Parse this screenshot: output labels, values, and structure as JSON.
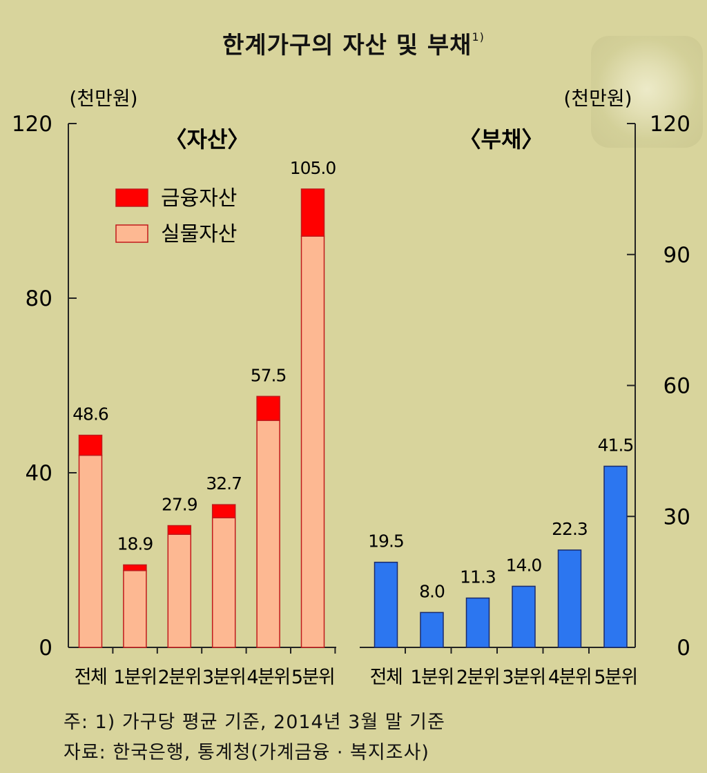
{
  "title": "한계가구의 자산 및 부채",
  "title_note": "1)",
  "footnotes": [
    "주: 1) 가구당 평균 기준, 2014년 3월 말 기준",
    "자료: 한국은행, 통계청(가계금융 · 복지조사)"
  ],
  "chart_data": [
    {
      "type": "bar",
      "stacked": true,
      "title": "〈자산〉",
      "unit_label": "(천만원)",
      "axis_side": "left",
      "ylim": [
        0,
        120
      ],
      "yticks": [
        0,
        40,
        80,
        120
      ],
      "categories": [
        "전체",
        "1분위",
        "2분위",
        "3분위",
        "4분위",
        "5분위"
      ],
      "series": [
        {
          "name": "실물자산",
          "color": "#fdb892",
          "values": [
            44.0,
            17.6,
            25.9,
            29.7,
            52.0,
            94.2
          ]
        },
        {
          "name": "금융자산",
          "color": "#ff0000",
          "values": [
            4.6,
            1.3,
            2.0,
            3.0,
            5.5,
            10.8
          ]
        }
      ],
      "total_labels": [
        "48.6",
        "18.9",
        "27.9",
        "32.7",
        "57.5",
        "105.0"
      ],
      "legend": {
        "position": "top-left",
        "order": [
          "금융자산",
          "실물자산"
        ]
      }
    },
    {
      "type": "bar",
      "title": "〈부채〉",
      "unit_label": "(천만원)",
      "axis_side": "right",
      "ylim": [
        0,
        120
      ],
      "yticks": [
        0,
        30,
        60,
        90,
        120
      ],
      "categories": [
        "전체",
        "1분위",
        "2분위",
        "3분위",
        "4분위",
        "5분위"
      ],
      "series": [
        {
          "color": "#2c76f0",
          "values": [
            19.5,
            8.0,
            11.3,
            14.0,
            22.3,
            41.5
          ]
        }
      ],
      "value_labels": [
        "19.5",
        "8.0",
        "11.3",
        "14.0",
        "22.3",
        "41.5"
      ]
    }
  ]
}
